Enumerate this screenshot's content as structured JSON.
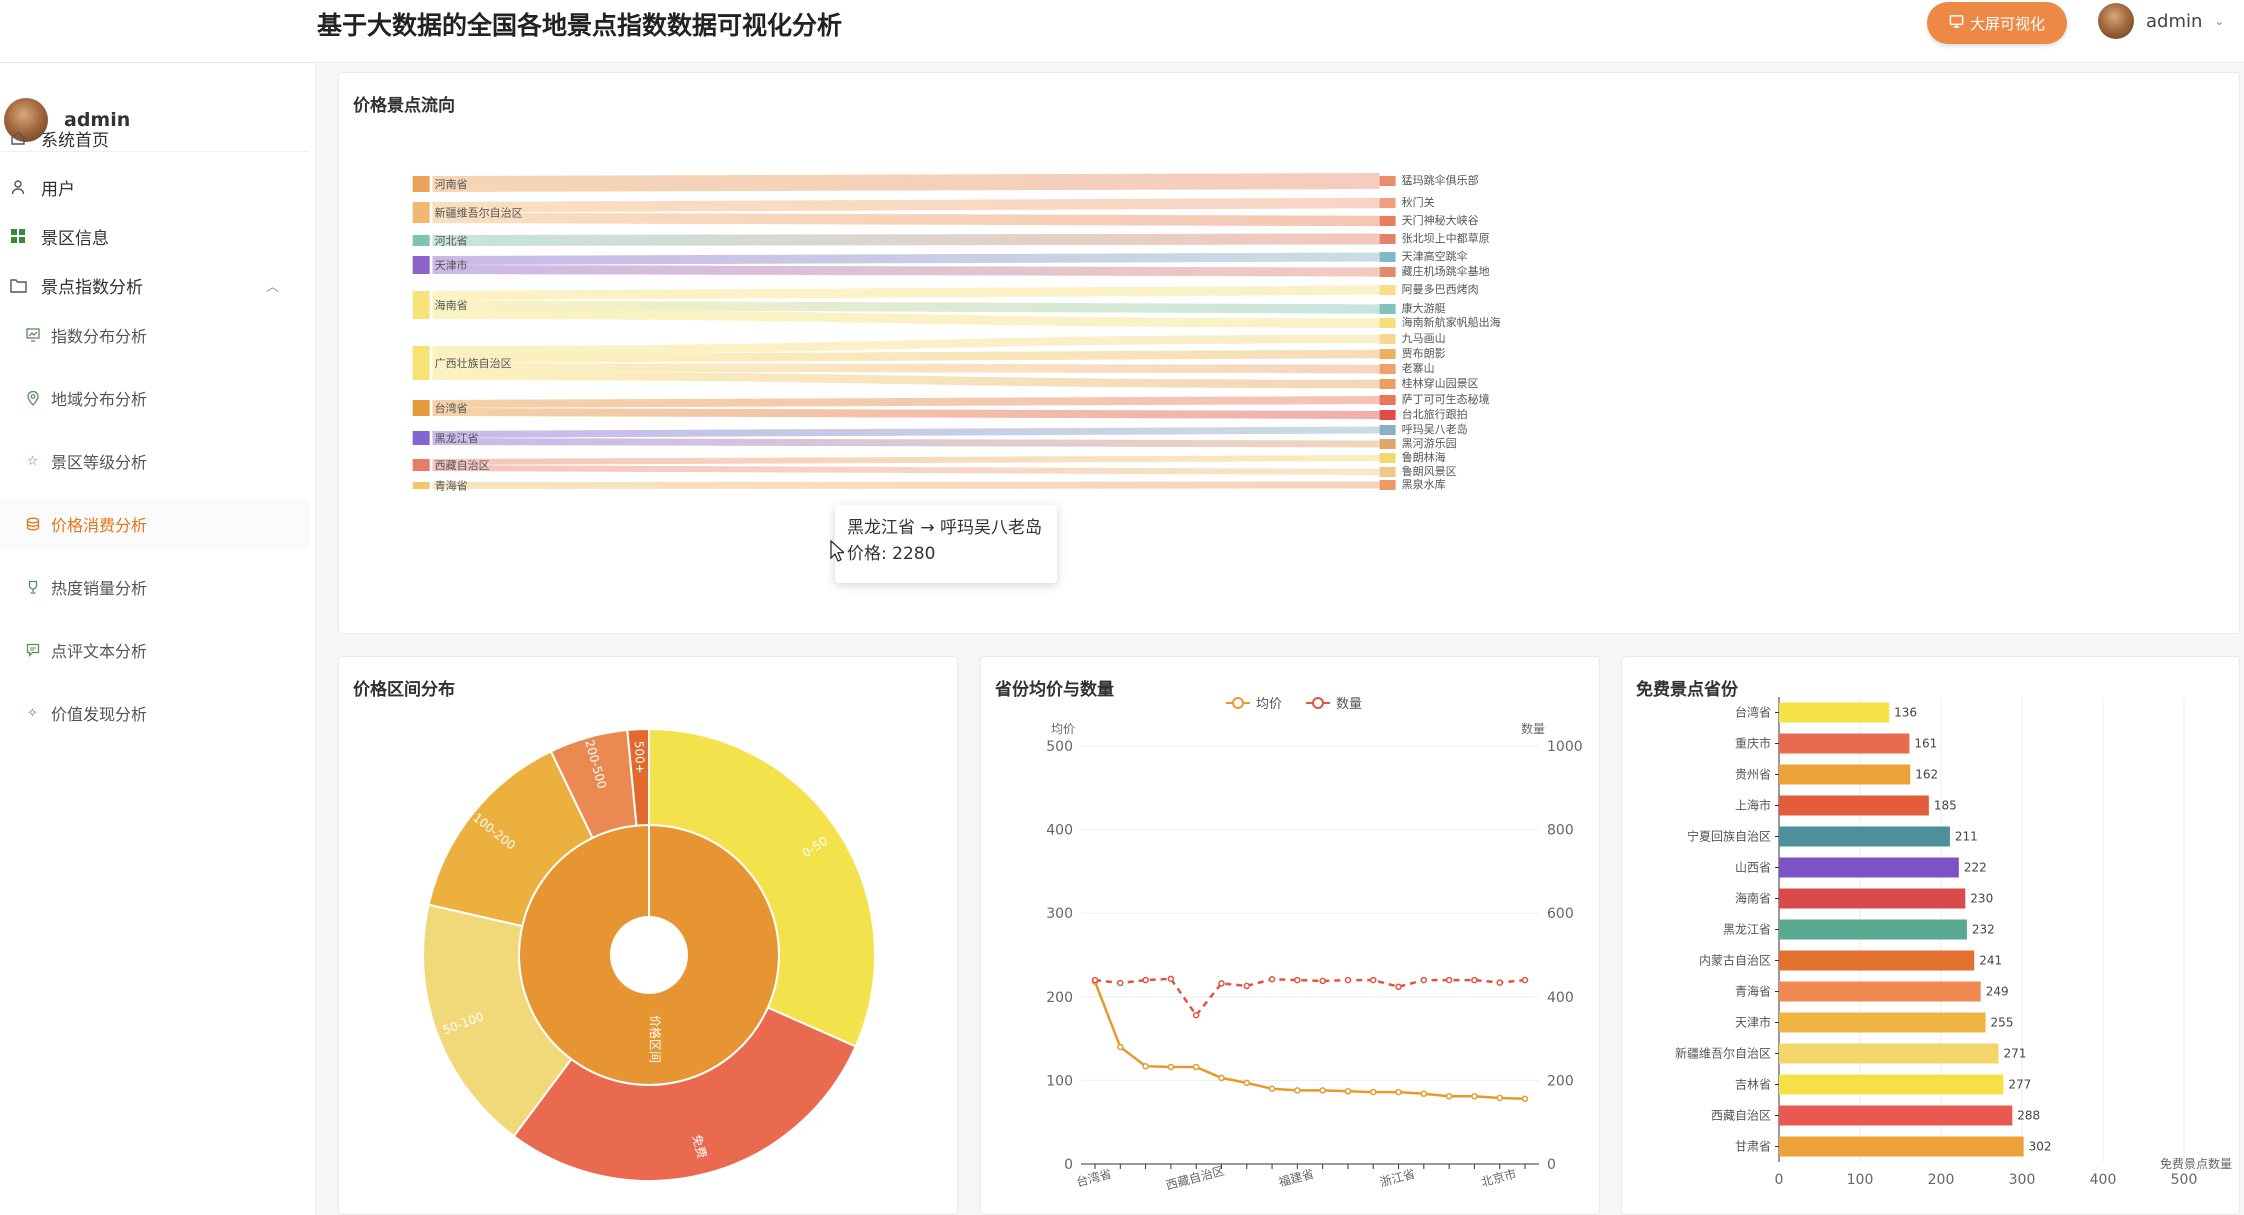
{
  "header": {
    "title": "基于大数据的全国各地景点指数数据可视化分析",
    "bigscreen_label": "大屏可视化",
    "username": "admin"
  },
  "sidebar": {
    "username": "admin",
    "items": [
      {
        "label": "系统首页",
        "icon": "home-icon"
      },
      {
        "label": "用户",
        "icon": "user-icon"
      },
      {
        "label": "景区信息",
        "icon": "grid-icon"
      },
      {
        "label": "景点指数分析",
        "icon": "folder-icon",
        "expanded": true
      }
    ],
    "sub_items": [
      {
        "label": "指数分布分析",
        "icon": "chart-icon"
      },
      {
        "label": "地域分布分析",
        "icon": "location-icon"
      },
      {
        "label": "景区等级分析",
        "icon": "star-icon"
      },
      {
        "label": "价格消费分析",
        "icon": "coins-icon",
        "active": true
      },
      {
        "label": "热度销量分析",
        "icon": "trophy-icon"
      },
      {
        "label": "点评文本分析",
        "icon": "comment-icon"
      },
      {
        "label": "价值发现分析",
        "icon": "magic-icon"
      }
    ]
  },
  "cards": {
    "sankey_title": "价格景点流向",
    "sunburst_title": "价格区间分布",
    "line_title": "省份均价与数量",
    "bar_title": "免费景点省份"
  },
  "tooltip": {
    "line1": "黑龙江省 → 呼玛吴八老岛",
    "line2": "价格: 2280"
  },
  "colors": {
    "accent": "#ec8a45",
    "active": "#e3741e"
  },
  "chart_data": [
    {
      "type": "sankey",
      "sources": [
        {
          "name": "河南省",
          "color": "#eaa35a"
        },
        {
          "name": "新疆维吾尔自治区",
          "color": "#f2b871"
        },
        {
          "name": "河北省",
          "color": "#7ec4b3"
        },
        {
          "name": "天津市",
          "color": "#8b63c9"
        },
        {
          "name": "海南省",
          "color": "#f6e47a"
        },
        {
          "name": "广西壮族自治区",
          "color": "#f7e375"
        },
        {
          "name": "台湾省",
          "color": "#e59a3b"
        },
        {
          "name": "黑龙江省",
          "color": "#8463d2"
        },
        {
          "name": "西藏自治区",
          "color": "#e87c6a"
        },
        {
          "name": "青海省",
          "color": "#f1c66e"
        }
      ],
      "targets": [
        {
          "name": "猛玛跳伞俱乐部",
          "color": "#e98d6f"
        },
        {
          "name": "秋门关",
          "color": "#eea07c"
        },
        {
          "name": "天门神秘大峡谷",
          "color": "#e88059"
        },
        {
          "name": "张北坝上中都草原",
          "color": "#e6806b"
        },
        {
          "name": "天津高空跳伞",
          "color": "#83b7c4"
        },
        {
          "name": "藏庄机场跳伞基地",
          "color": "#e38a6f"
        },
        {
          "name": "阿曼多巴西烤肉",
          "color": "#f6df86"
        },
        {
          "name": "康大游艇",
          "color": "#80c3b7"
        },
        {
          "name": "海南新航家帆船出海",
          "color": "#f4e07c"
        },
        {
          "name": "九马画山",
          "color": "#f4d88d"
        },
        {
          "name": "贾布朗影",
          "color": "#eab25e"
        },
        {
          "name": "老寨山",
          "color": "#efa06e"
        },
        {
          "name": "桂林穿山园景区",
          "color": "#e6a160"
        },
        {
          "name": "萨丁可可生态秘境",
          "color": "#e8785a"
        },
        {
          "name": "台北旅行跟拍",
          "color": "#e14b4b"
        },
        {
          "name": "呼玛吴八老岛",
          "color": "#8ab0c6"
        },
        {
          "name": "黑河游乐园",
          "color": "#e0a56a"
        },
        {
          "name": "鲁朗林海",
          "color": "#f2d96e"
        },
        {
          "name": "鲁朗风景区",
          "color": "#f2c785"
        },
        {
          "name": "黑泉水库",
          "color": "#ec9a64"
        }
      ],
      "links": [
        [
          0,
          0
        ],
        [
          1,
          1
        ],
        [
          1,
          2
        ],
        [
          2,
          3
        ],
        [
          3,
          4
        ],
        [
          3,
          5
        ],
        [
          4,
          6
        ],
        [
          4,
          7
        ],
        [
          4,
          8
        ],
        [
          5,
          9
        ],
        [
          5,
          10
        ],
        [
          5,
          11
        ],
        [
          5,
          12
        ],
        [
          6,
          13
        ],
        [
          6,
          14
        ],
        [
          7,
          15
        ],
        [
          7,
          16
        ],
        [
          8,
          17
        ],
        [
          8,
          18
        ],
        [
          9,
          19
        ]
      ]
    },
    {
      "type": "sunburst",
      "center_label": "价格区间",
      "inner": [
        {
          "name": "价格区间",
          "value": 100
        }
      ],
      "outer": [
        {
          "name": "0-50",
          "value": 31,
          "color": "#f4e24d"
        },
        {
          "name": "免费",
          "value": 28,
          "color": "#ea6a50"
        },
        {
          "name": "50-100",
          "value": 18,
          "color": "#f1d878"
        },
        {
          "name": "100-200",
          "value": 14,
          "color": "#ecb03f"
        },
        {
          "name": "200-500",
          "value": 5.5,
          "color": "#ea8a52"
        },
        {
          "name": "500+",
          "value": 1.5,
          "color": "#e26a2c"
        }
      ]
    },
    {
      "type": "line",
      "legend": [
        "均价",
        "数量"
      ],
      "y_left": {
        "name": "均价",
        "ticks": [
          0,
          100,
          200,
          300,
          400,
          500
        ],
        "range": [
          0,
          500
        ]
      },
      "y_right": {
        "name": "数量",
        "ticks": [
          0,
          200,
          400,
          600,
          800,
          1000
        ],
        "range": [
          0,
          1000
        ]
      },
      "x_labels": [
        "台湾省",
        "西藏自治区",
        "福建省",
        "浙江省",
        "北京市"
      ],
      "series": [
        {
          "name": "均价",
          "color": "#e69a2c",
          "values": [
            218,
            140,
            117,
            116,
            116,
            103,
            97,
            90,
            88,
            88,
            87,
            86,
            86,
            84,
            81,
            81,
            79,
            78
          ]
        },
        {
          "name": "数量",
          "color": "#e0553f",
          "values": [
            440,
            433,
            440,
            443,
            356,
            432,
            426,
            442,
            440,
            438,
            440,
            440,
            424,
            440,
            440,
            440,
            434,
            440
          ]
        }
      ]
    },
    {
      "type": "bar",
      "orientation": "horizontal",
      "x_label": "免费景点数量",
      "x_ticks": [
        0,
        100,
        200,
        300,
        400,
        500
      ],
      "categories": [
        "台湾省",
        "重庆市",
        "贵州省",
        "上海市",
        "宁夏回族自治区",
        "山西省",
        "海南省",
        "黑龙江省",
        "内蒙古自治区",
        "青海省",
        "天津市",
        "新疆维吾尔自治区",
        "吉林省",
        "西藏自治区",
        "甘肃省"
      ],
      "values": [
        136,
        161,
        162,
        185,
        211,
        222,
        230,
        232,
        241,
        249,
        255,
        271,
        277,
        288,
        302
      ],
      "colors": [
        "#f5e045",
        "#ea6a50",
        "#eca239",
        "#e35d3a",
        "#4d8f9b",
        "#7c52c4",
        "#d94a4a",
        "#5aa992",
        "#e2702f",
        "#f08a52",
        "#efb441",
        "#f4d56c",
        "#f5e045",
        "#e95951",
        "#eca239"
      ]
    }
  ]
}
